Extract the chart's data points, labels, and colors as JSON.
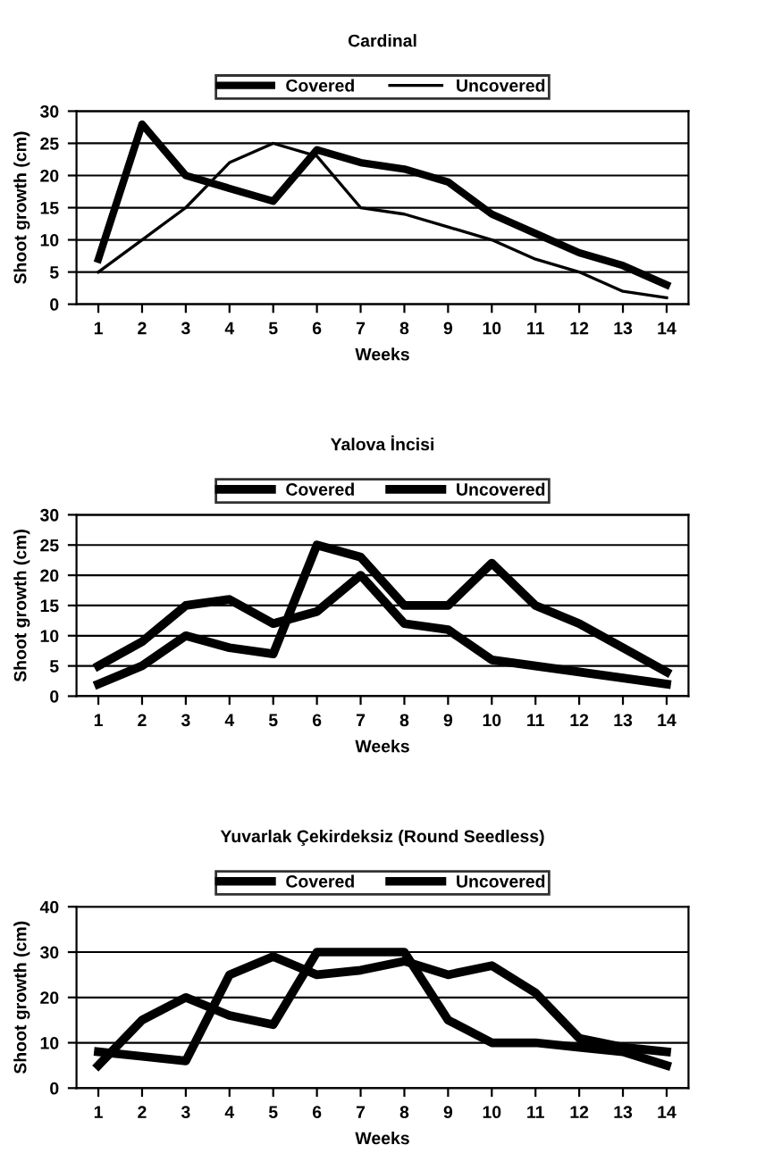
{
  "chart_data": [
    {
      "type": "line",
      "title": "Cardinal",
      "xlabel": "Weeks",
      "ylabel": "Shoot growth (cm)",
      "categories": [
        "1",
        "2",
        "3",
        "4",
        "5",
        "6",
        "7",
        "8",
        "9",
        "10",
        "11",
        "12",
        "13",
        "14"
      ],
      "series": [
        {
          "name": "Covered",
          "color": "#000000",
          "values": [
            7,
            28,
            20,
            18,
            16,
            24,
            22,
            21,
            19,
            14,
            11,
            8,
            6,
            3
          ]
        },
        {
          "name": "Uncovered",
          "color": "#000000",
          "values": [
            5,
            10,
            15,
            22,
            25,
            23,
            15,
            14,
            12,
            10,
            7,
            5,
            2,
            1
          ]
        }
      ],
      "ylim": [
        0,
        30
      ],
      "yticks": [
        0,
        5,
        10,
        15,
        20,
        25,
        30
      ],
      "grid": "y",
      "legend": "top",
      "marker": "none",
      "line_style": "solid"
    },
    {
      "type": "line",
      "title": "Yalova İncisi",
      "xlabel": "Weeks",
      "ylabel": "Shoot growth (cm)",
      "categories": [
        "1",
        "2",
        "3",
        "4",
        "5",
        "6",
        "7",
        "8",
        "9",
        "10",
        "11",
        "12",
        "13",
        "14"
      ],
      "series": [
        {
          "name": "Covered",
          "color": "#000000",
          "values": [
            5,
            9,
            15,
            16,
            12,
            14,
            20,
            12,
            11,
            6,
            5,
            4,
            3,
            2
          ]
        },
        {
          "name": "Uncovered",
          "color": "#000000",
          "values": [
            2,
            5,
            10,
            8,
            7,
            25,
            23,
            15,
            15,
            22,
            15,
            12,
            8,
            4
          ]
        }
      ],
      "ylim": [
        0,
        30
      ],
      "yticks": [
        0,
        5,
        10,
        15,
        20,
        25,
        30
      ],
      "grid": "y",
      "legend": "top",
      "marker": "none",
      "line_style": "solid"
    },
    {
      "type": "line",
      "title": "Yuvarlak Çekirdeksiz (Round Seedless)",
      "xlabel": "Weeks",
      "ylabel": "Shoot growth (cm)",
      "categories": [
        "1",
        "2",
        "3",
        "4",
        "5",
        "6",
        "7",
        "8",
        "9",
        "10",
        "11",
        "12",
        "13",
        "14"
      ],
      "series": [
        {
          "name": "Covered",
          "color": "#000000",
          "values": [
            5,
            15,
            20,
            16,
            14,
            30,
            30,
            30,
            15,
            10,
            10,
            9,
            8,
            5
          ]
        },
        {
          "name": "Uncovered",
          "color": "#000000",
          "values": [
            8,
            7,
            6,
            25,
            29,
            25,
            26,
            28,
            25,
            27,
            21,
            11,
            9,
            8
          ]
        }
      ],
      "ylim": [
        0,
        40
      ],
      "yticks": [
        0,
        10,
        20,
        30,
        40
      ],
      "grid": "y",
      "legend": "top",
      "marker": "none",
      "line_style": "solid"
    }
  ]
}
